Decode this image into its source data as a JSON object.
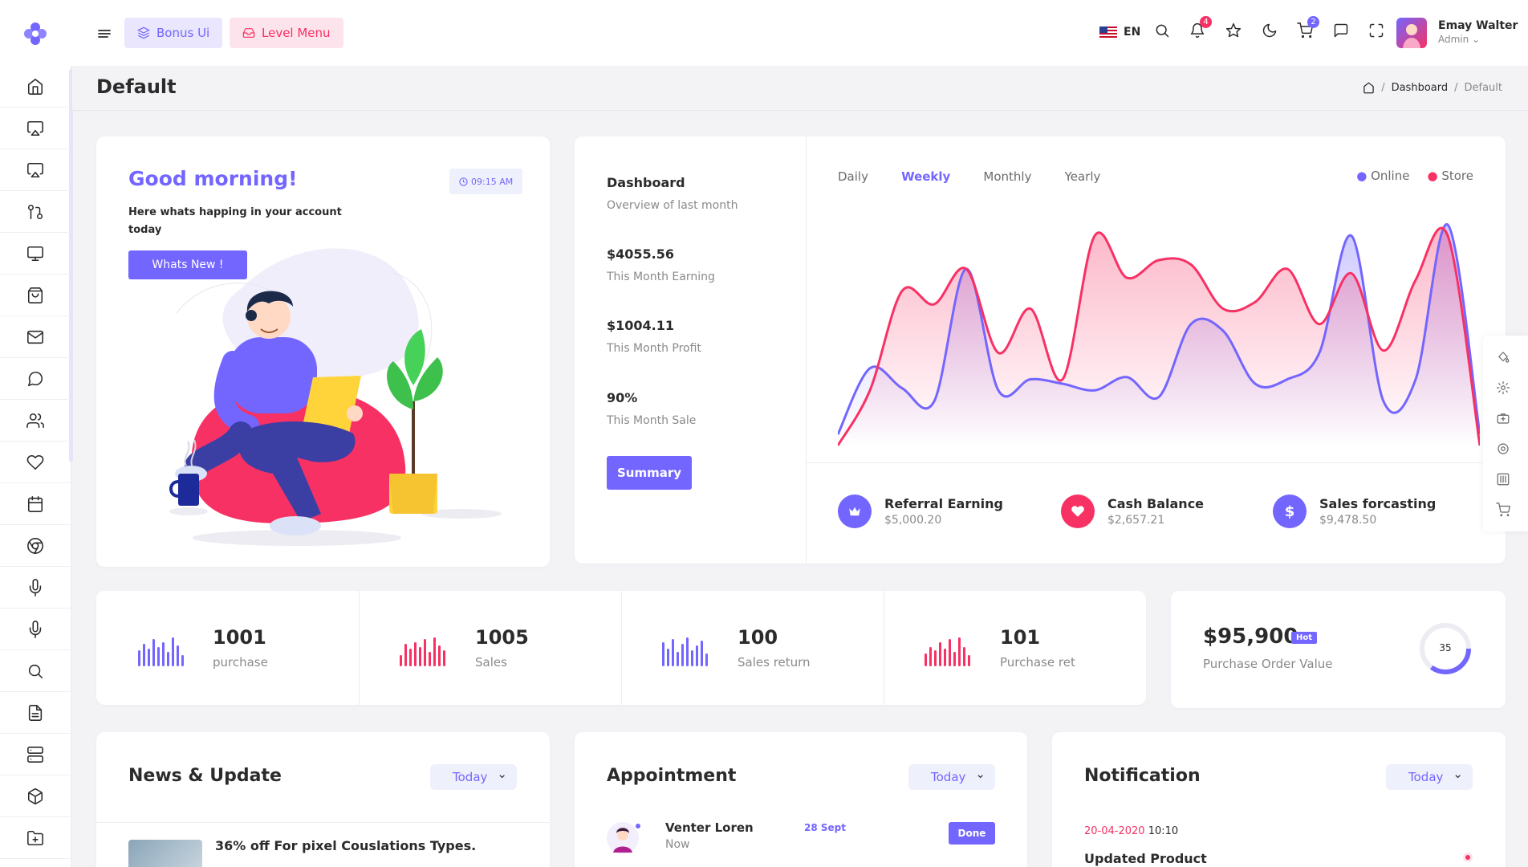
{
  "header": {
    "bonus_label": "Bonus Ui",
    "level_label": "Level Menu",
    "lang": "EN",
    "notif_count": "4",
    "cart_count": "2",
    "user_name": "Emay Walter",
    "user_role": "Admin"
  },
  "page": {
    "title": "Default",
    "breadcrumb": [
      "Dashboard",
      "Default"
    ]
  },
  "welcome": {
    "greeting": "Good morning!",
    "time": "09:15 AM",
    "text": "Here whats happing in your account today",
    "button": "Whats New !"
  },
  "overview": {
    "title": "Dashboard",
    "subtitle": "Overview of last month",
    "items": [
      {
        "value": "$4055.56",
        "label": "This Month Earning"
      },
      {
        "value": "$1004.11",
        "label": "This Month Profit"
      },
      {
        "value": "90%",
        "label": "This Month Sale"
      }
    ],
    "button": "Summary"
  },
  "chart_tabs": [
    "Daily",
    "Weekly",
    "Monthly",
    "Yearly"
  ],
  "chart_legend": [
    "Online",
    "Store"
  ],
  "chart_data": {
    "type": "area",
    "x": [
      0,
      1,
      2,
      3,
      4,
      5,
      6,
      7,
      8,
      9,
      10,
      11,
      12,
      13,
      14,
      15,
      16,
      17,
      18,
      19,
      20
    ],
    "series": [
      {
        "name": "Online",
        "values": [
          5,
          35,
          26,
          20,
          80,
          25,
          30,
          28,
          25,
          31,
          22,
          55,
          52,
          28,
          30,
          42,
          95,
          20,
          30,
          100,
          5
        ]
      },
      {
        "name": "Store",
        "values": [
          0,
          25,
          70,
          64,
          80,
          42,
          62,
          30,
          95,
          76,
          84,
          82,
          62,
          65,
          80,
          55,
          78,
          43,
          75,
          95,
          0
        ]
      }
    ],
    "colors": {
      "Online": "#7366ff",
      "Store": "#f73164"
    }
  },
  "earnings": [
    {
      "title": "Referral Earning",
      "value": "$5,000.20",
      "color": "#7366ff",
      "icon": "crown-icon"
    },
    {
      "title": "Cash Balance",
      "value": "$2,657.21",
      "color": "#f73164",
      "icon": "heart-icon"
    },
    {
      "title": "Sales forcasting",
      "value": "$9,478.50",
      "color": "#7366ff",
      "icon": "dollar-icon"
    }
  ],
  "stats": [
    {
      "value": "1001",
      "label": "purchase",
      "color": "#7366ff"
    },
    {
      "value": "1005",
      "label": "Sales",
      "color": "#f73164"
    },
    {
      "value": "100",
      "label": "Sales return",
      "color": "#7366ff"
    },
    {
      "value": "101",
      "label": "Purchase ret",
      "color": "#f73164"
    }
  ],
  "purchase_order": {
    "value": "$95,900",
    "badge": "Hot",
    "label": "Purchase Order Value",
    "ring": "35"
  },
  "news": {
    "title": "News & Update",
    "filter": "Today",
    "item": "36% off For pixel Couslations Types."
  },
  "appointment": {
    "title": "Appointment",
    "filter": "Today",
    "name": "Venter Loren",
    "when": "Now",
    "date": "28 Sept",
    "status": "Done"
  },
  "notification": {
    "title": "Notification",
    "filter": "Today",
    "date": "20-04-2020",
    "time": "10:10",
    "item": "Updated Product"
  }
}
